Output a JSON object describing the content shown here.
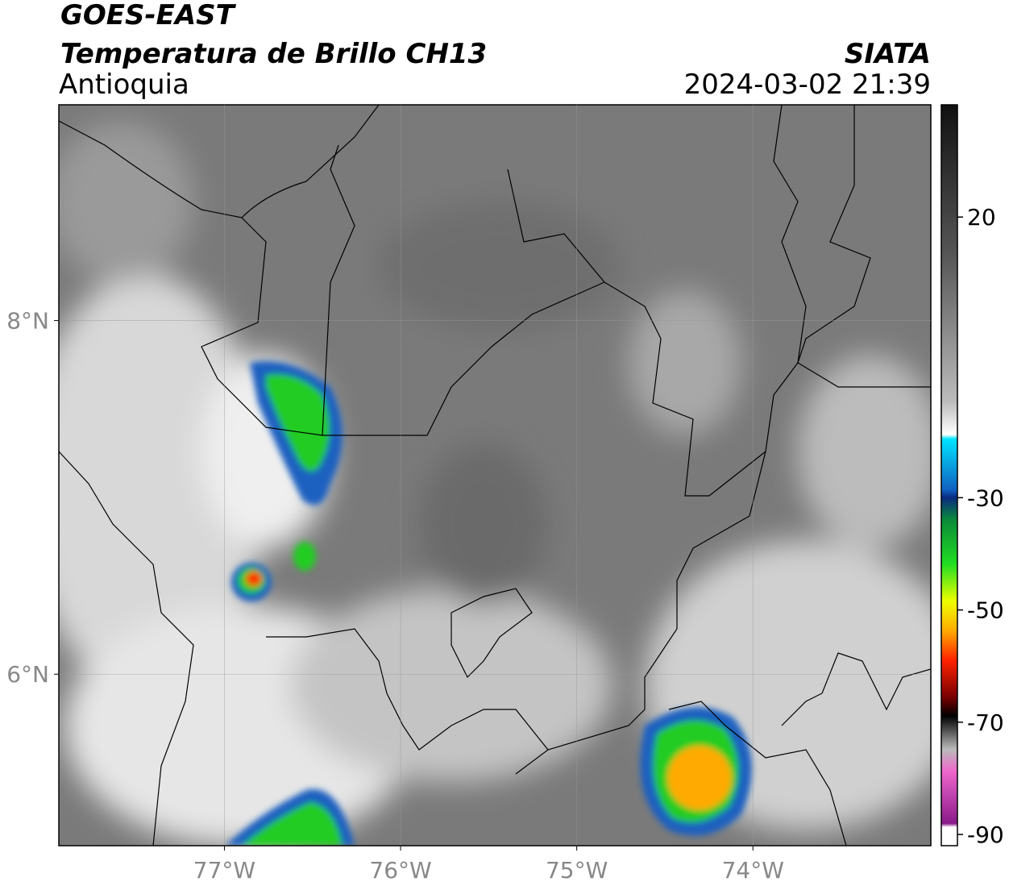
{
  "map": {
    "title": "GOES-EAST",
    "subtitle": "Temperatura de Brillo CH13",
    "region": "Antioquia",
    "source": "SIATA",
    "datetime": "2024-03-02 21:39",
    "xlim": [
      -77.94,
      -72.99
    ],
    "ylim": [
      5.03,
      9.22
    ],
    "xticks": [
      {
        "value": -77,
        "label": "77°W"
      },
      {
        "value": -76,
        "label": "76°W"
      },
      {
        "value": -75,
        "label": "75°W"
      },
      {
        "value": -74,
        "label": "74°W"
      }
    ],
    "yticks": [
      {
        "value": 8,
        "label": "8°N"
      },
      {
        "value": 6,
        "label": "6°N"
      }
    ],
    "grid": true,
    "colorbar": {
      "lim": [
        -92,
        40
      ],
      "ticks": [
        20,
        -30,
        -50,
        -70,
        -90
      ]
    }
  }
}
